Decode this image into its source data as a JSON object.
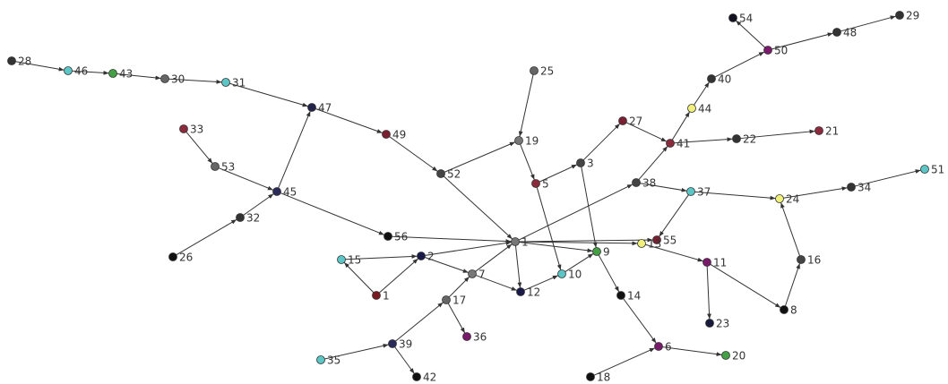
{
  "nodes": [
    {
      "label": "28",
      "color": "#333333"
    },
    {
      "label": "46",
      "color": "#5cc6c6"
    },
    {
      "label": "43",
      "color": "#44a044"
    },
    {
      "label": "30",
      "color": "#666666"
    },
    {
      "label": "31",
      "color": "#5cc6c6"
    },
    {
      "label": "47",
      "color": "#22224a"
    },
    {
      "label": "49",
      "color": "#7a2030"
    },
    {
      "label": "33",
      "color": "#8a2a3a"
    },
    {
      "label": "53",
      "color": "#666666"
    },
    {
      "label": "45",
      "color": "#2a2a5a"
    },
    {
      "label": "32",
      "color": "#333333"
    },
    {
      "label": "26",
      "color": "#111111"
    },
    {
      "label": "52",
      "color": "#444444"
    },
    {
      "label": "56",
      "color": "#111111"
    },
    {
      "label": "1",
      "color": "#777777"
    },
    {
      "label": "25",
      "color": "#666666"
    },
    {
      "label": "19",
      "color": "#777777"
    },
    {
      "label": "5",
      "color": "#8a2a3a"
    },
    {
      "label": "3",
      "color": "#444444"
    },
    {
      "label": "27",
      "color": "#7a2030"
    },
    {
      "label": "41",
      "color": "#8a2a3a"
    },
    {
      "label": "22",
      "color": "#333333"
    },
    {
      "label": "21",
      "color": "#8a2a3a"
    },
    {
      "label": "44",
      "color": "#f0f07a"
    },
    {
      "label": "40",
      "color": "#333333"
    },
    {
      "label": "50",
      "color": "#7a1a6a"
    },
    {
      "label": "54",
      "color": "#111122"
    },
    {
      "label": "48",
      "color": "#333333"
    },
    {
      "label": "29",
      "color": "#333333"
    },
    {
      "label": "38",
      "color": "#444444"
    },
    {
      "label": "37",
      "color": "#5cc6c6"
    },
    {
      "label": "24",
      "color": "#f0f07a"
    },
    {
      "label": "34",
      "color": "#333333"
    },
    {
      "label": "51",
      "color": "#5cc6c6"
    },
    {
      "label": "55",
      "color": "#7a2030"
    },
    {
      "label": "13",
      "color": "#f0f07a"
    },
    {
      "label": "11",
      "color": "#7a1a6a"
    },
    {
      "label": "16",
      "color": "#444444"
    },
    {
      "label": "8",
      "color": "#111111"
    },
    {
      "label": "23",
      "color": "#1a1a3a"
    },
    {
      "label": "9",
      "color": "#44a044"
    },
    {
      "label": "14",
      "color": "#111111"
    },
    {
      "label": "6",
      "color": "#7a1a6a"
    },
    {
      "label": "20",
      "color": "#44a044"
    },
    {
      "label": "18",
      "color": "#111111"
    },
    {
      "label": "10",
      "color": "#5cc6c6"
    },
    {
      "label": "12",
      "color": "#1a1a4a"
    },
    {
      "label": "7",
      "color": "#777777"
    },
    {
      "label": "2",
      "color": "#1a1a4a"
    },
    {
      "label": "15",
      "color": "#5cc6c6"
    },
    {
      "label": "1",
      "color": "#7a1a20"
    },
    {
      "label": "17",
      "color": "#666666"
    },
    {
      "label": "36",
      "color": "#7a1a6a"
    },
    {
      "label": "39",
      "color": "#2a2a5a"
    },
    {
      "label": "35",
      "color": "#5cc6c6"
    },
    {
      "label": "42",
      "color": "#111111"
    }
  ]
}
